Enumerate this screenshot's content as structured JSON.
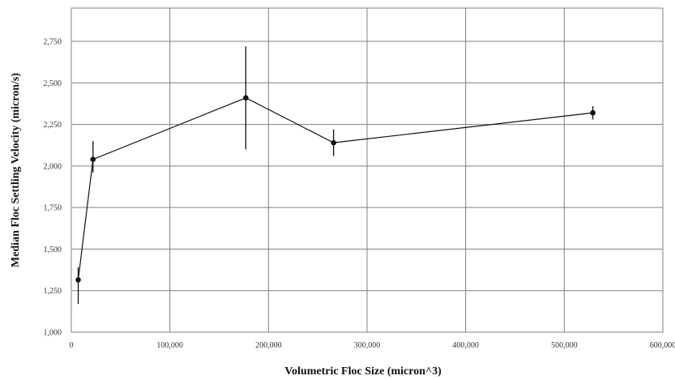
{
  "chart_data": {
    "type": "scatter",
    "xlabel": "Volumetric Floc Size (micron^3)",
    "ylabel": "Median Floc Settling Velocity (micron/s)",
    "xlim": [
      0,
      600000
    ],
    "ylim": [
      1000,
      2950
    ],
    "grid": true,
    "legend": "none",
    "x_ticks": [
      0,
      100000,
      200000,
      300000,
      400000,
      500000,
      600000
    ],
    "x_tick_labels": [
      "0",
      "100,000",
      "200,000",
      "300,000",
      "400,000",
      "500,000",
      "600,000"
    ],
    "y_ticks": [
      1000,
      1250,
      1500,
      1750,
      2000,
      2250,
      2500,
      2750
    ],
    "y_tick_labels": [
      "1,000",
      "1,250",
      "1,500",
      "1,750",
      "2,000",
      "2,250",
      "2,500",
      "2,750"
    ],
    "series": [
      {
        "points": [
          {
            "x": 7000,
            "y": 1315,
            "err_low": 1170,
            "err_high": 1390
          },
          {
            "x": 22000,
            "y": 2040,
            "err_low": 1960,
            "err_high": 2150
          },
          {
            "x": 177000,
            "y": 2410,
            "err_low": 2100,
            "err_high": 2720
          },
          {
            "x": 266000,
            "y": 2140,
            "err_low": 2060,
            "err_high": 2220
          },
          {
            "x": 529000,
            "y": 2320,
            "err_low": 2280,
            "err_high": 2360
          }
        ]
      }
    ],
    "colors": {
      "line": "#111111",
      "grid": "#808080",
      "marker": "#111111"
    }
  }
}
